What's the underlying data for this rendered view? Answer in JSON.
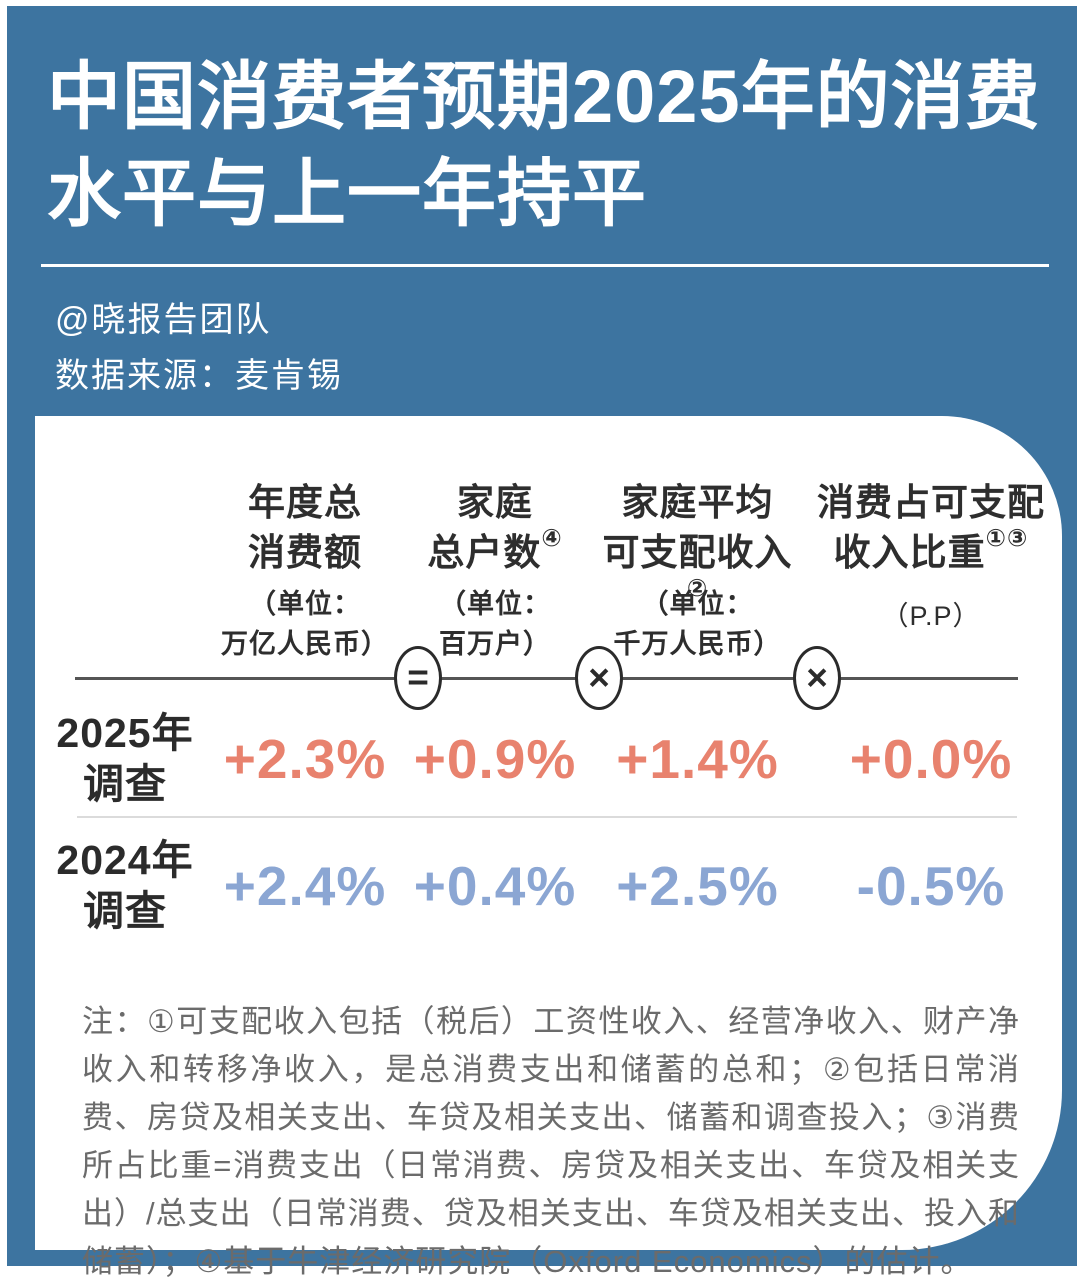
{
  "header": {
    "title_line1": "中国消费者预期2025年的消费",
    "title_line2": "水平与上一年持平",
    "byline": "@晓报告团队",
    "source_label": "数据来源：麦肯锡"
  },
  "colors": {
    "background_blue": "#3D74A0",
    "card_white": "#FFFFFF",
    "row_2025_accent": "#E8826E",
    "row_2024_accent": "#8BA6D3",
    "dark_text": "#2B2B2B",
    "footnote_gray": "#6B6B6B"
  },
  "table": {
    "columns": [
      {
        "name_line1": "年度总",
        "name_line2": "消费额",
        "sup": "",
        "unit_line1": "（单位：",
        "unit_line2": "万亿人民币）"
      },
      {
        "name_line1": "家庭",
        "name_line2": "总户数",
        "sup": "④",
        "unit_line1": "（单位：",
        "unit_line2": "百万户）"
      },
      {
        "name_line1": "家庭平均",
        "name_line2": "可支配收入",
        "sup": "②",
        "unit_line1": "（单位：",
        "unit_line2": "千万人民币）"
      },
      {
        "name_line1": "消费占可支配",
        "name_line2": "收入比重",
        "sup": "①③",
        "unit_line1": "（P.P）",
        "unit_line2": ""
      }
    ],
    "operators": [
      "=",
      "×",
      "×"
    ],
    "rows": [
      {
        "label_line1": "2025年",
        "label_line2": "调查",
        "values": [
          "+2.3%",
          "+0.9%",
          "+1.4%",
          "+0.0%"
        ]
      },
      {
        "label_line1": "2024年",
        "label_line2": "调查",
        "values": [
          "+2.4%",
          "+0.4%",
          "+2.5%",
          "-0.5%"
        ]
      }
    ]
  },
  "footnote": "注：①可支配收入包括（税后）工资性收入、经营净收入、财产净收入和转移净收入，是总消费支出和储蓄的总和；②包括日常消费、房贷及相关支出、车贷及相关支出、储蓄和调查投入；③消费所占比重=消费支出（日常消费、房贷及相关支出、车贷及相关支出）/总支出（日常消费、贷及相关支出、车贷及相关支出、投入和储蓄）；④基于牛津经济研究院（Oxford Economics）的估计。",
  "chart_data": {
    "type": "table",
    "title": "中国消费者预期2025年的消费水平与上一年持平",
    "source": "麦肯锡",
    "categories": [
      "年度总消费额（万亿人民币）",
      "家庭总户数（百万户）",
      "家庭平均可支配收入（千万人民币）",
      "消费占可支配收入比重（P.P）"
    ],
    "operators_between_columns": [
      "=",
      "×",
      "×"
    ],
    "series": [
      {
        "name": "2025年调查",
        "values": [
          2.3,
          0.9,
          1.4,
          0.0
        ],
        "unit": "%"
      },
      {
        "name": "2024年调查",
        "values": [
          2.4,
          0.4,
          2.5,
          -0.5
        ],
        "unit": "%"
      }
    ]
  }
}
